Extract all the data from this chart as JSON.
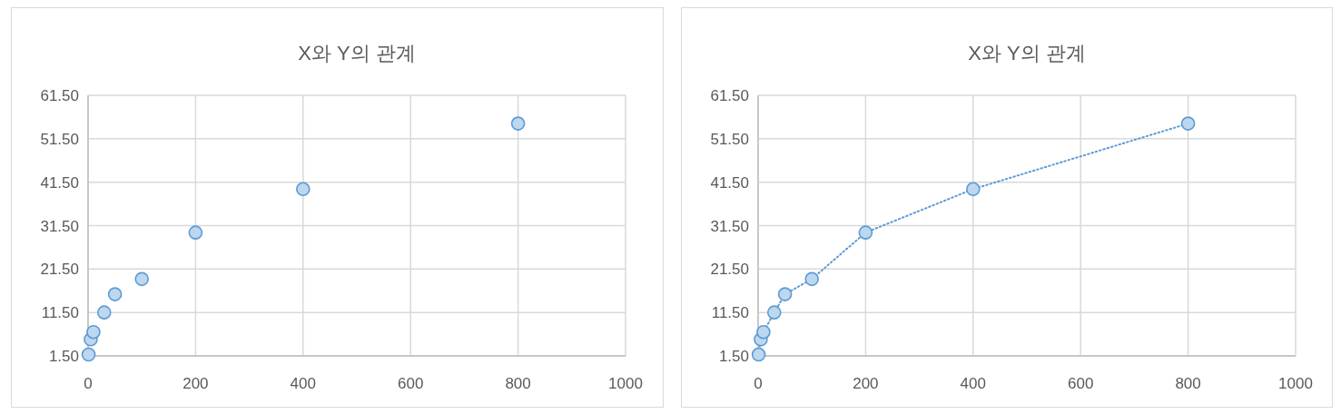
{
  "chart_data": [
    {
      "type": "scatter",
      "title": "X와 Y의 관계",
      "marker": "circle",
      "grid": true,
      "xlim": [
        0,
        1000
      ],
      "xticks": [
        0,
        200,
        400,
        600,
        800,
        1000
      ],
      "ylim": [
        1.5,
        61.5
      ],
      "yticks": [
        {
          "value": 1.5,
          "label": "1.50"
        },
        {
          "value": 11.5,
          "label": "11.50"
        },
        {
          "value": 21.5,
          "label": "21.50"
        },
        {
          "value": 31.5,
          "label": "31.50"
        },
        {
          "value": 41.5,
          "label": "41.50"
        },
        {
          "value": 51.5,
          "label": "51.50"
        },
        {
          "value": 61.5,
          "label": "61.50"
        }
      ],
      "series": [
        {
          "color": "#5b9bd5",
          "x": [
            1,
            5,
            10,
            30,
            50,
            100,
            200,
            400,
            800
          ],
          "values": [
            1.8,
            5.3,
            7.0,
            11.5,
            15.7,
            19.2,
            29.9,
            39.9,
            55.0
          ]
        }
      ]
    },
    {
      "type": "line",
      "title": "X와 Y의 관계",
      "marker": "circle",
      "line_style": "dotted",
      "grid": true,
      "xlim": [
        0,
        1000
      ],
      "xticks": [
        0,
        200,
        400,
        600,
        800,
        1000
      ],
      "ylim": [
        1.5,
        61.5
      ],
      "yticks": [
        {
          "value": 1.5,
          "label": "1.50"
        },
        {
          "value": 11.5,
          "label": "11.50"
        },
        {
          "value": 21.5,
          "label": "21.50"
        },
        {
          "value": 31.5,
          "label": "31.50"
        },
        {
          "value": 41.5,
          "label": "41.50"
        },
        {
          "value": 51.5,
          "label": "51.50"
        },
        {
          "value": 61.5,
          "label": "61.50"
        }
      ],
      "series": [
        {
          "color": "#5b9bd5",
          "x": [
            1,
            5,
            10,
            30,
            50,
            100,
            200,
            400,
            800
          ],
          "values": [
            1.8,
            5.3,
            7.0,
            11.5,
            15.7,
            19.2,
            29.9,
            39.9,
            55.0
          ]
        }
      ]
    }
  ]
}
